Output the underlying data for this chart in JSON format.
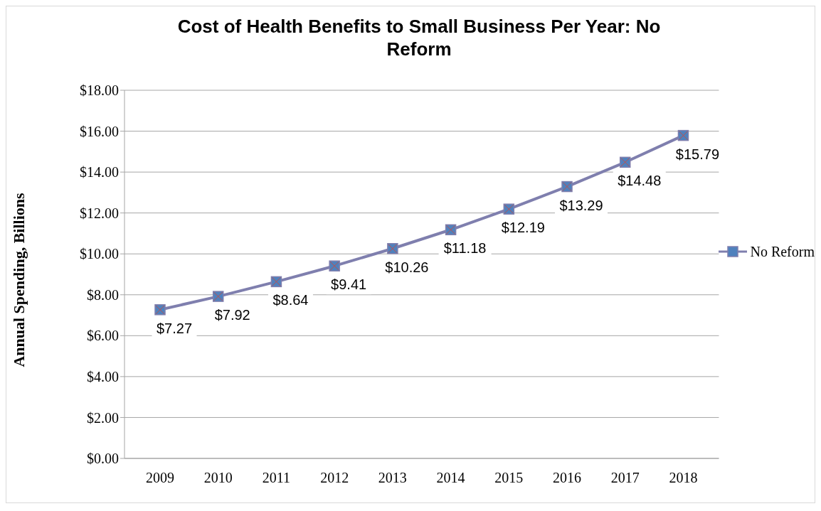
{
  "chart_data": {
    "type": "line",
    "title": "Cost of Health Benefits to Small Business Per Year: No Reform",
    "ylabel": "Annual Spending, Billions",
    "categories": [
      "2009",
      "2010",
      "2011",
      "2012",
      "2013",
      "2014",
      "2015",
      "2016",
      "2017",
      "2018"
    ],
    "series": [
      {
        "name": "No Reform",
        "color": "#7f7fae",
        "values": [
          7.27,
          7.92,
          8.64,
          9.41,
          10.26,
          11.18,
          12.19,
          13.29,
          14.48,
          15.79
        ],
        "value_labels": [
          "$7.27",
          "$7.92",
          "$8.64",
          "$9.41",
          "$10.26",
          "$11.18",
          "$12.19",
          "$13.29",
          "$14.48",
          "$15.79"
        ]
      }
    ],
    "ylim": [
      0,
      18
    ],
    "yticks": [
      {
        "value": 0,
        "label": "$0.00"
      },
      {
        "value": 2,
        "label": "$2.00"
      },
      {
        "value": 4,
        "label": "$4.00"
      },
      {
        "value": 6,
        "label": "$6.00"
      },
      {
        "value": 8,
        "label": "$8.00"
      },
      {
        "value": 10,
        "label": "$10.00"
      },
      {
        "value": 12,
        "label": "$12.00"
      },
      {
        "value": 14,
        "label": "$14.00"
      },
      {
        "value": 16,
        "label": "$16.00"
      },
      {
        "value": 18,
        "label": "$18.00"
      }
    ],
    "grid": "y",
    "legend": "right",
    "marker": "square",
    "line_style": "solid"
  }
}
